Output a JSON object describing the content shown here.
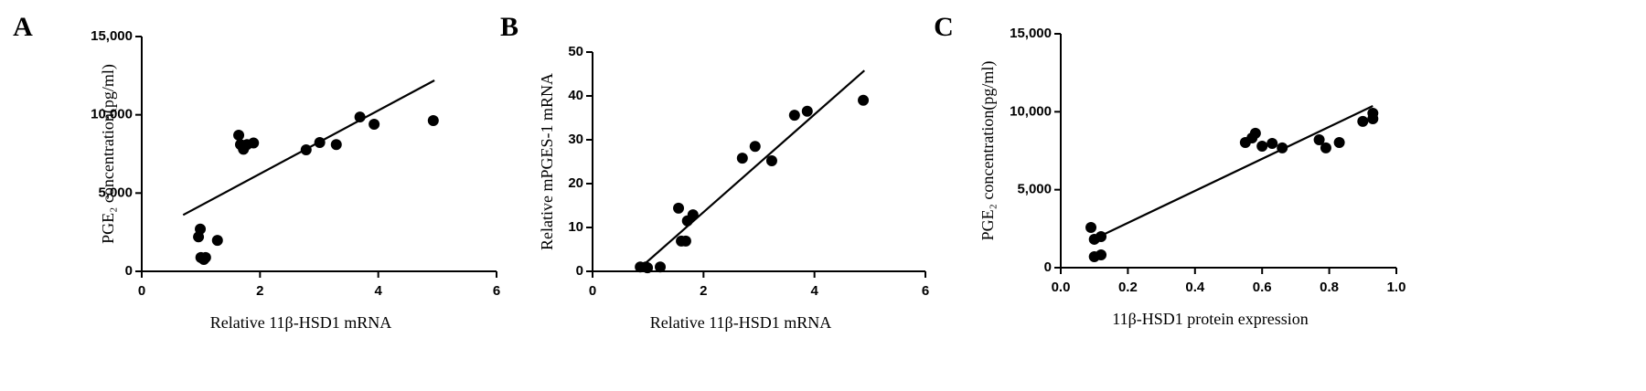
{
  "chart_data": [
    {
      "type": "scatter",
      "panel_label": "A",
      "xlabel": "Relative 11β-HSD1 mRNA",
      "ylabel": "PGE₂ concentration(pg/ml)",
      "color": "#000000",
      "x": [
        0.96,
        0.99,
        1.0,
        1.05,
        1.08,
        1.28,
        1.64,
        1.67,
        1.72,
        1.78,
        1.89,
        2.78,
        3.01,
        3.29,
        3.69,
        3.93,
        4.93
      ],
      "values": [
        2200,
        2700,
        880,
        760,
        880,
        1980,
        8700,
        8100,
        7800,
        8100,
        8200,
        7760,
        8230,
        8100,
        9860,
        9400,
        9630
      ],
      "trendline": {
        "x": [
          0.7,
          4.95
        ],
        "values": [
          3600,
          12200
        ]
      },
      "xlim": [
        0,
        6
      ],
      "xticks": [
        0,
        2,
        4,
        6
      ],
      "ylim": [
        0,
        15000
      ],
      "yticks": [
        0,
        {
          "value": 5000,
          "label": "5,000"
        },
        {
          "value": 10000,
          "label": "10,000"
        },
        {
          "value": 15000,
          "label": "15,000"
        }
      ]
    },
    {
      "type": "scatter",
      "panel_label": "B",
      "xlabel": "Relative 11β-HSD1 mRNA",
      "ylabel": "Relative mPGES-1 mRNA",
      "color": "#000000",
      "x": [
        0.86,
        0.96,
        0.99,
        1.22,
        1.55,
        1.6,
        1.68,
        1.71,
        1.81,
        2.7,
        2.93,
        3.23,
        3.64,
        3.87,
        4.88
      ],
      "values": [
        1.0,
        1.0,
        0.8,
        1.0,
        14.4,
        6.9,
        6.9,
        11.5,
        12.9,
        25.8,
        28.5,
        25.2,
        35.6,
        36.5,
        39.0
      ],
      "trendline": {
        "x": [
          0.9,
          4.9
        ],
        "values": [
          1.25,
          45.8
        ]
      },
      "xlim": [
        0,
        6
      ],
      "xticks": [
        0,
        2,
        4,
        6
      ],
      "ylim": [
        0,
        50
      ],
      "yticks": [
        0,
        10,
        20,
        30,
        40,
        50
      ]
    },
    {
      "type": "scatter",
      "panel_label": "C",
      "xlabel": "11β-HSD1 protein expression",
      "ylabel": "PGE₂ concentration(pg/ml)",
      "color": "#000000",
      "x": [
        0.09,
        0.1,
        0.1,
        0.12,
        0.12,
        0.55,
        0.57,
        0.58,
        0.6,
        0.63,
        0.66,
        0.77,
        0.79,
        0.83,
        0.9,
        0.93,
        0.93
      ],
      "values": [
        2580,
        700,
        1820,
        820,
        1990,
        8030,
        8320,
        8620,
        7790,
        7970,
        7680,
        8200,
        7680,
        8030,
        9380,
        9550,
        9900
      ],
      "trendline": {
        "x": [
          0.12,
          0.93
        ],
        "values": [
          2050,
          10370
        ]
      },
      "xlim": [
        0,
        1
      ],
      "xticks": [
        {
          "value": 0,
          "label": "0.0"
        },
        0.2,
        0.4,
        0.6,
        0.8,
        {
          "value": 1,
          "label": "1.0"
        }
      ],
      "ylim": [
        0,
        15000
      ],
      "yticks": [
        0,
        {
          "value": 5000,
          "label": "5,000"
        },
        {
          "value": 10000,
          "label": "10,000"
        },
        {
          "value": 15000,
          "label": "15,000"
        }
      ]
    }
  ]
}
